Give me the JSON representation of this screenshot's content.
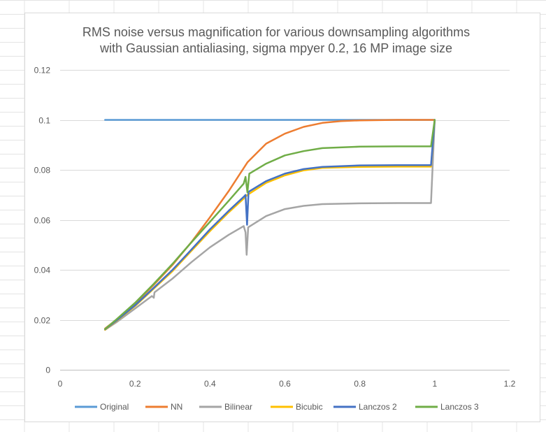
{
  "colors": {
    "sheet_grid": "#e4e4e4",
    "plot_grid": "#d9d9d9",
    "text": "#595959"
  },
  "chart_data": {
    "type": "line",
    "title_lines": [
      "RMS noise versus magnification for various downsampling algorithms",
      "with Gaussian antialiasing, sigma mpyer 0.2, 16 MP image size"
    ],
    "xlabel": "",
    "ylabel": "",
    "xlim": [
      0,
      1.2
    ],
    "ylim": [
      0,
      0.12
    ],
    "x_ticks": [
      "0",
      "0.2",
      "0.4",
      "0.6",
      "0.8",
      "1",
      "1.2"
    ],
    "y_ticks": [
      "0",
      "0.02",
      "0.04",
      "0.06",
      "0.08",
      "0.1",
      "0.12"
    ],
    "grid": "horizontal",
    "legend_position": "bottom",
    "series": [
      {
        "name": "Original",
        "color": "#5b9bd5",
        "points": [
          [
            0.12,
            0.1
          ],
          [
            1.0,
            0.1
          ]
        ]
      },
      {
        "name": "NN",
        "color": "#ed7d31",
        "points": [
          [
            0.12,
            0.0165
          ],
          [
            0.15,
            0.02
          ],
          [
            0.2,
            0.0265
          ],
          [
            0.25,
            0.034
          ],
          [
            0.3,
            0.042
          ],
          [
            0.35,
            0.051
          ],
          [
            0.4,
            0.061
          ],
          [
            0.45,
            0.0715
          ],
          [
            0.5,
            0.083
          ],
          [
            0.55,
            0.0905
          ],
          [
            0.6,
            0.0945
          ],
          [
            0.65,
            0.0972
          ],
          [
            0.7,
            0.0988
          ],
          [
            0.75,
            0.0995
          ],
          [
            0.8,
            0.0998
          ],
          [
            0.9,
            0.1
          ],
          [
            1.0,
            0.1
          ]
        ]
      },
      {
        "name": "Bilinear",
        "color": "#a5a5a5",
        "points": [
          [
            0.12,
            0.016
          ],
          [
            0.15,
            0.019
          ],
          [
            0.2,
            0.0245
          ],
          [
            0.245,
            0.0295
          ],
          [
            0.25,
            0.0288
          ],
          [
            0.252,
            0.031
          ],
          [
            0.3,
            0.0365
          ],
          [
            0.35,
            0.043
          ],
          [
            0.4,
            0.049
          ],
          [
            0.45,
            0.054
          ],
          [
            0.49,
            0.0575
          ],
          [
            0.495,
            0.055
          ],
          [
            0.498,
            0.046
          ],
          [
            0.502,
            0.057
          ],
          [
            0.55,
            0.0615
          ],
          [
            0.6,
            0.0643
          ],
          [
            0.65,
            0.0656
          ],
          [
            0.7,
            0.0663
          ],
          [
            0.8,
            0.0666
          ],
          [
            0.9,
            0.0667
          ],
          [
            0.99,
            0.0667
          ],
          [
            1.0,
            0.1
          ]
        ]
      },
      {
        "name": "Bicubic",
        "color": "#ffc000",
        "points": [
          [
            0.12,
            0.016
          ],
          [
            0.15,
            0.0195
          ],
          [
            0.2,
            0.0255
          ],
          [
            0.25,
            0.0325
          ],
          [
            0.3,
            0.0395
          ],
          [
            0.35,
            0.0475
          ],
          [
            0.4,
            0.0555
          ],
          [
            0.45,
            0.063
          ],
          [
            0.49,
            0.0685
          ],
          [
            0.5,
            0.07
          ],
          [
            0.55,
            0.0748
          ],
          [
            0.6,
            0.0778
          ],
          [
            0.65,
            0.0798
          ],
          [
            0.7,
            0.0808
          ],
          [
            0.8,
            0.0812
          ],
          [
            0.9,
            0.0813
          ],
          [
            0.99,
            0.0813
          ],
          [
            1.0,
            0.1
          ]
        ]
      },
      {
        "name": "Lanczos 2",
        "color": "#4472c4",
        "points": [
          [
            0.12,
            0.0162
          ],
          [
            0.15,
            0.0197
          ],
          [
            0.2,
            0.0258
          ],
          [
            0.25,
            0.0328
          ],
          [
            0.3,
            0.04
          ],
          [
            0.35,
            0.048
          ],
          [
            0.4,
            0.0562
          ],
          [
            0.45,
            0.0636
          ],
          [
            0.49,
            0.0692
          ],
          [
            0.495,
            0.07
          ],
          [
            0.499,
            0.058
          ],
          [
            0.503,
            0.0712
          ],
          [
            0.55,
            0.0755
          ],
          [
            0.6,
            0.0785
          ],
          [
            0.65,
            0.0803
          ],
          [
            0.7,
            0.0812
          ],
          [
            0.8,
            0.0818
          ],
          [
            0.9,
            0.0819
          ],
          [
            0.99,
            0.0819
          ],
          [
            1.0,
            0.1
          ]
        ]
      },
      {
        "name": "Lanczos 3",
        "color": "#70ad47",
        "points": [
          [
            0.12,
            0.0163
          ],
          [
            0.15,
            0.0201
          ],
          [
            0.2,
            0.0268
          ],
          [
            0.25,
            0.0344
          ],
          [
            0.3,
            0.0424
          ],
          [
            0.35,
            0.0509
          ],
          [
            0.4,
            0.0592
          ],
          [
            0.45,
            0.0676
          ],
          [
            0.49,
            0.0745
          ],
          [
            0.495,
            0.0772
          ],
          [
            0.5,
            0.071
          ],
          [
            0.505,
            0.0785
          ],
          [
            0.55,
            0.0825
          ],
          [
            0.6,
            0.0858
          ],
          [
            0.65,
            0.0875
          ],
          [
            0.7,
            0.0887
          ],
          [
            0.8,
            0.0893
          ],
          [
            0.9,
            0.0894
          ],
          [
            0.99,
            0.0894
          ],
          [
            1.0,
            0.1
          ]
        ]
      }
    ]
  }
}
